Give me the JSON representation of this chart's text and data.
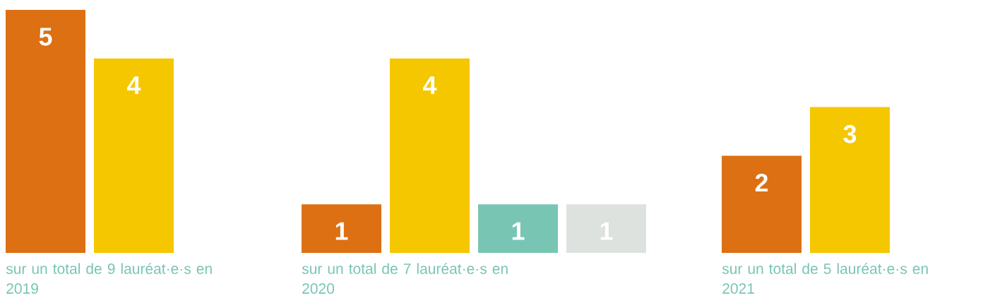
{
  "chart_data": [
    {
      "type": "bar",
      "categories": [
        null,
        null
      ],
      "values": [
        5,
        4
      ],
      "colors": [
        "#dc7012",
        "#f5c700"
      ],
      "data_labels": true,
      "xlabel": "sur un total de 9 lauréat·e·s en 2019"
    },
    {
      "type": "bar",
      "categories": [
        null,
        null,
        null,
        null
      ],
      "values": [
        1,
        4,
        1,
        1
      ],
      "colors": [
        "#dc7012",
        "#f5c700",
        "#78c5b4",
        "#dee2df"
      ],
      "data_labels": true,
      "xlabel": "sur un total de 7 lauréat·e·s en 2020"
    },
    {
      "type": "bar",
      "categories": [
        null,
        null
      ],
      "values": [
        2,
        3
      ],
      "colors": [
        "#dc7012",
        "#f5c700"
      ],
      "data_labels": true,
      "xlabel": "sur un total de 5 lauréat·e·s en 2021"
    }
  ]
}
